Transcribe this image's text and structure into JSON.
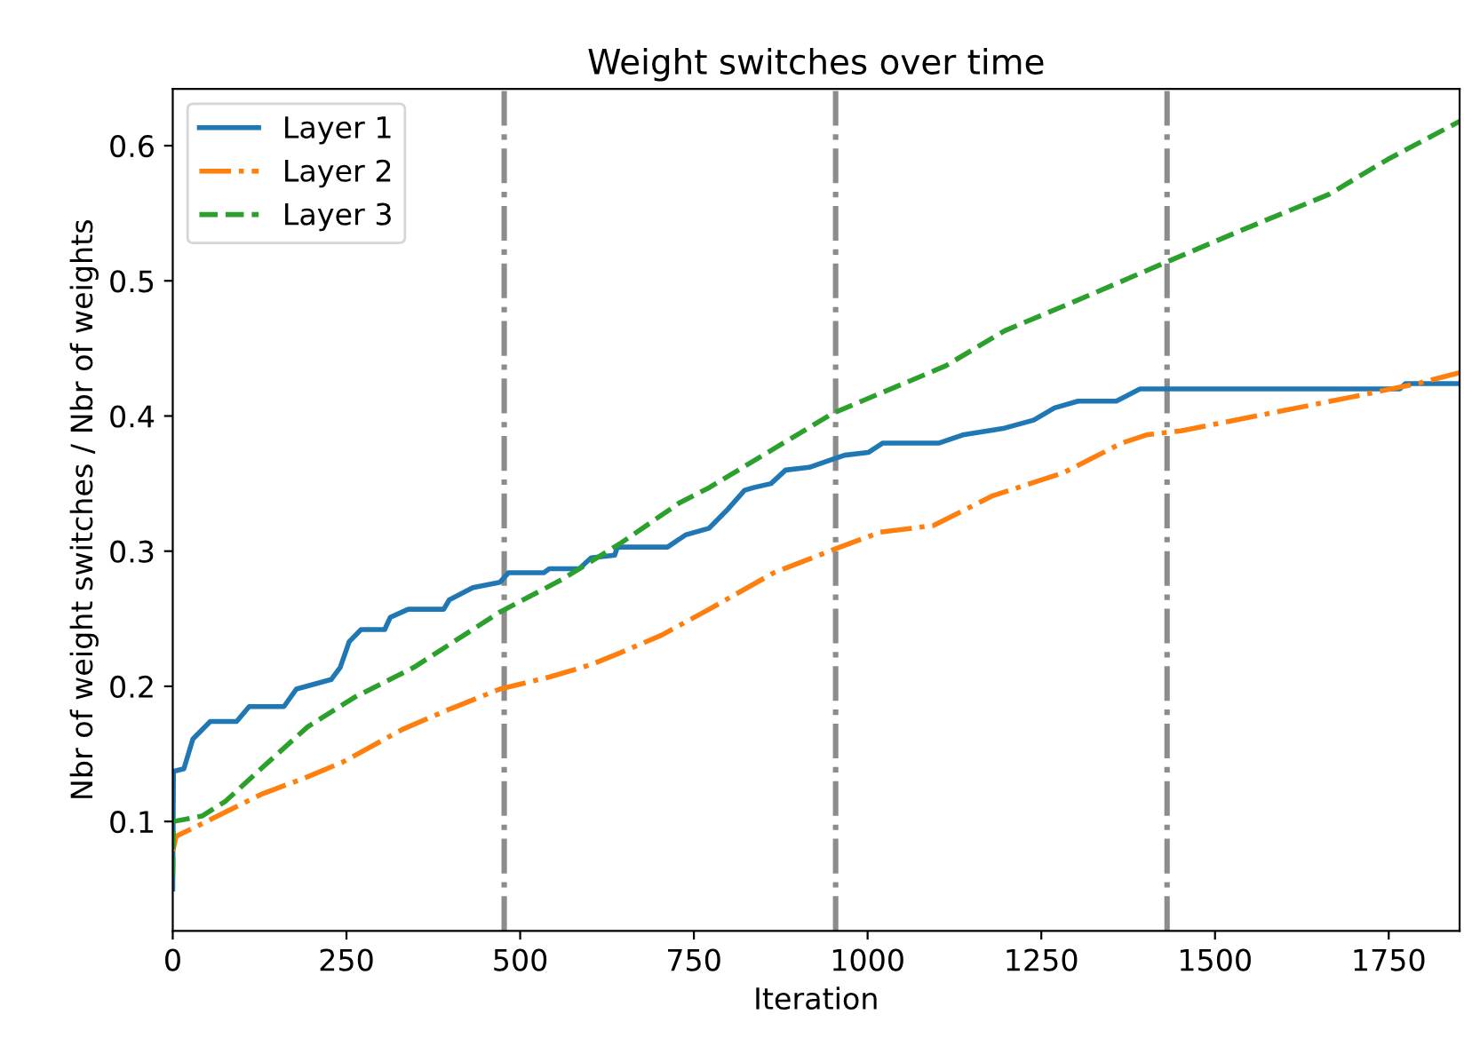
{
  "chart_data": {
    "type": "line",
    "title": "Weight switches over time",
    "xlabel": "Iteration",
    "ylabel": "Nbr of weight switches / Nbr of weights",
    "xlim": [
      0,
      1852
    ],
    "ylim": [
      0.019,
      0.642
    ],
    "xticks": [
      0,
      250,
      500,
      750,
      1000,
      1250,
      1500,
      1750
    ],
    "yticks": [
      0.1,
      0.2,
      0.3,
      0.4,
      0.5,
      0.6
    ],
    "grid": false,
    "legend": "top left",
    "ref_lines": [
      {
        "axis": "x",
        "value": 477,
        "color": "#8c8c8c",
        "line_style": "dashdot"
      },
      {
        "axis": "x",
        "value": 954,
        "color": "#8c8c8c",
        "line_style": "dashdot"
      },
      {
        "axis": "x",
        "value": 1431,
        "color": "#8c8c8c",
        "line_style": "dashdot"
      }
    ],
    "series": [
      {
        "name": "Layer 1",
        "color": "#1f77b4",
        "line_style": "solid",
        "x": [
          0,
          1,
          16,
          29,
          54,
          92,
          110,
          160,
          178,
          228,
          241,
          254,
          271,
          305,
          313,
          339,
          390,
          398,
          432,
          471,
          483,
          534,
          542,
          585,
          602,
          636,
          640,
          712,
          738,
          772,
          797,
          823,
          836,
          861,
          882,
          916,
          950,
          967,
          1001,
          1022,
          1103,
          1137,
          1197,
          1239,
          1269,
          1303,
          1358,
          1392,
          1766,
          1774,
          1852
        ],
        "values": [
          0.05,
          0.137,
          0.139,
          0.161,
          0.174,
          0.174,
          0.185,
          0.185,
          0.198,
          0.205,
          0.214,
          0.233,
          0.242,
          0.242,
          0.251,
          0.257,
          0.257,
          0.264,
          0.273,
          0.277,
          0.284,
          0.284,
          0.287,
          0.287,
          0.295,
          0.297,
          0.303,
          0.303,
          0.312,
          0.317,
          0.33,
          0.345,
          0.347,
          0.35,
          0.36,
          0.362,
          0.368,
          0.371,
          0.373,
          0.38,
          0.38,
          0.386,
          0.391,
          0.397,
          0.406,
          0.411,
          0.411,
          0.42,
          0.42,
          0.424,
          0.424
        ]
      },
      {
        "name": "Layer 2",
        "color": "#ff7f0e",
        "line_style": "dashdot",
        "x": [
          0,
          5,
          33,
          76,
          127,
          194,
          245,
          330,
          398,
          471,
          543,
          602,
          645,
          704,
          772,
          865,
          950,
          1018,
          1095,
          1180,
          1282,
          1366,
          1401,
          1451,
          1579,
          1706,
          1791,
          1852
        ],
        "values": [
          0.078,
          0.089,
          0.096,
          0.107,
          0.12,
          0.133,
          0.144,
          0.168,
          0.183,
          0.198,
          0.207,
          0.216,
          0.225,
          0.238,
          0.257,
          0.284,
          0.301,
          0.314,
          0.319,
          0.341,
          0.358,
          0.38,
          0.386,
          0.389,
          0.402,
          0.415,
          0.424,
          0.432
        ]
      },
      {
        "name": "Layer 3",
        "color": "#2ca02c",
        "line_style": "dashed",
        "x": [
          0,
          1,
          42,
          76,
          127,
          194,
          262,
          347,
          471,
          560,
          645,
          730,
          772,
          950,
          1112,
          1197,
          1299,
          1426,
          1536,
          1664,
          1749,
          1852
        ],
        "values": [
          0.06,
          0.1,
          0.104,
          0.115,
          0.139,
          0.17,
          0.192,
          0.214,
          0.255,
          0.279,
          0.306,
          0.336,
          0.347,
          0.402,
          0.437,
          0.463,
          0.485,
          0.513,
          0.537,
          0.564,
          0.59,
          0.618
        ]
      }
    ]
  }
}
